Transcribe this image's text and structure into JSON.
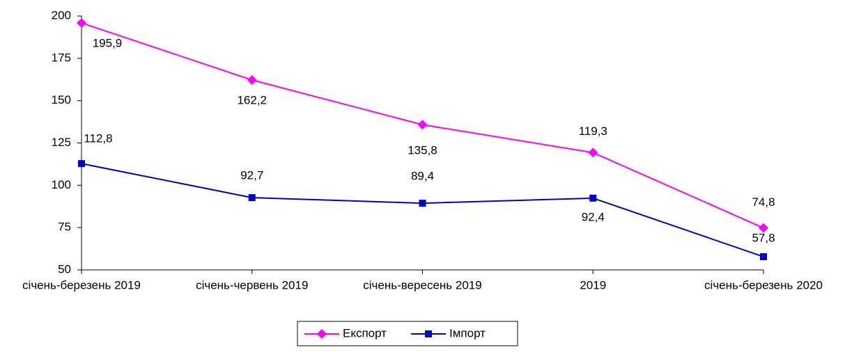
{
  "chart_data": {
    "type": "line",
    "categories": [
      "січень-березень 2019",
      "січень-червень 2019",
      "січень-вересень 2019",
      "2019",
      "січень-березень 2020"
    ],
    "series": [
      {
        "name": "Експорт",
        "color": "#ff00ff",
        "marker": "diamond",
        "values": [
          195.9,
          162.2,
          135.8,
          119.3,
          74.8
        ],
        "value_labels": [
          "195,9",
          "162,2",
          "135,8",
          "119,3",
          "74,8"
        ]
      },
      {
        "name": "Імпорт",
        "color": "#0000cc",
        "marker": "square",
        "values": [
          112.8,
          92.7,
          89.4,
          92.4,
          57.8
        ],
        "value_labels": [
          "112,8",
          "92,7",
          "89,4",
          "92,4",
          "57,8"
        ]
      }
    ],
    "ylim": [
      50,
      200
    ],
    "yticks": [
      50,
      75,
      100,
      125,
      150,
      175,
      200
    ],
    "legend": "bottom"
  }
}
